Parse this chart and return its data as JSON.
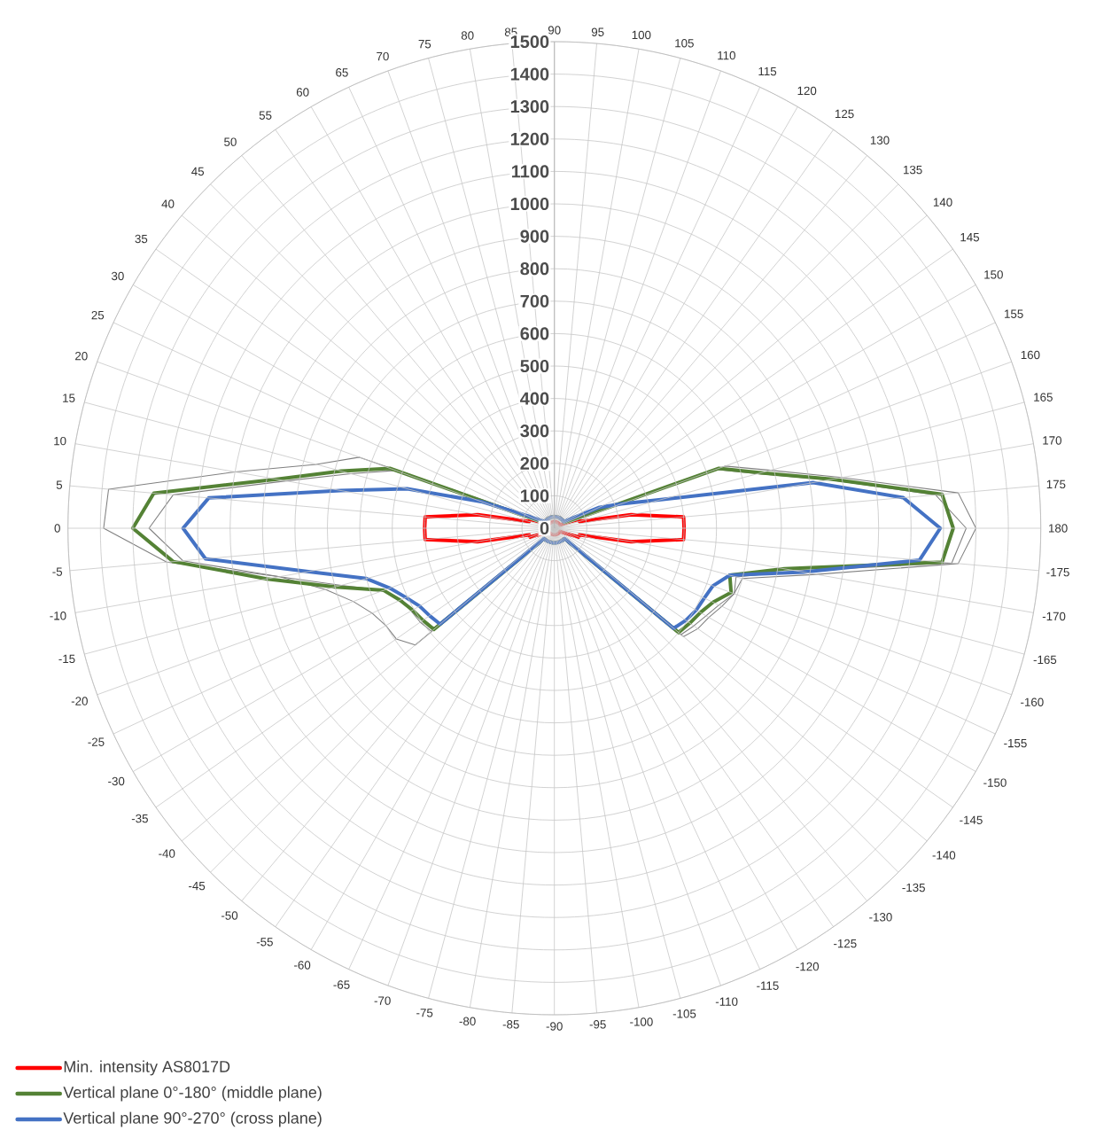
{
  "chart_data": {
    "type": "radar",
    "categories": [
      "90",
      "95",
      "100",
      "105",
      "110",
      "115",
      "120",
      "125",
      "130",
      "135",
      "140",
      "145",
      "150",
      "155",
      "160",
      "165",
      "170",
      "175",
      "180",
      "-175",
      "-170",
      "-165",
      "-160",
      "-155",
      "-150",
      "-145",
      "-140",
      "-135",
      "-130",
      "-125",
      "-120",
      "-115",
      "-110",
      "-105",
      "-100",
      "-95",
      "-90",
      "-85",
      "-80",
      "-75",
      "-70",
      "-65",
      "-60",
      "-55",
      "-50",
      "-45",
      "-40",
      "-35",
      "-30",
      "-25",
      "-20",
      "-15",
      "-10",
      "-5",
      "0",
      "5",
      "10",
      "15",
      "20",
      "25",
      "30",
      "35",
      "40",
      "45",
      "50",
      "55",
      "60",
      "65",
      "70",
      "75",
      "80",
      "85"
    ],
    "series": [
      {
        "name": "Min. intensity AS8017D",
        "color": "#ff0000",
        "values": [
          20,
          20,
          20,
          20,
          20,
          20,
          20,
          20,
          20,
          20,
          20,
          20,
          20,
          40,
          80,
          80,
          240,
          400,
          400,
          400,
          240,
          80,
          80,
          40,
          20,
          20,
          20,
          20,
          20,
          20,
          20,
          20,
          20,
          20,
          20,
          20,
          20,
          20,
          20,
          20,
          20,
          20,
          20,
          20,
          20,
          20,
          20,
          20,
          20,
          40,
          80,
          80,
          240,
          400,
          400,
          400,
          240,
          80,
          80,
          40,
          20,
          20,
          20,
          20,
          20,
          20,
          20,
          20,
          20,
          20,
          20,
          20
        ]
      },
      {
        "name": "Vertical plane 0°-180° (middle plane)",
        "color": "#548235",
        "values": [
          35,
          35,
          35,
          35,
          35,
          35,
          35,
          35,
          35,
          35,
          35,
          35,
          35,
          50,
          540,
          660,
          870,
          1200,
          1230,
          1200,
          720,
          560,
          580,
          540,
          520,
          510,
          500,
          50,
          45,
          45,
          45,
          45,
          45,
          45,
          45,
          45,
          45,
          45,
          45,
          45,
          45,
          45,
          45,
          45,
          45,
          50,
          485,
          495,
          505,
          525,
          560,
          700,
          900,
          1180,
          1300,
          1240,
          870,
          680,
          540,
          50,
          35,
          35,
          35,
          35,
          35,
          35,
          35,
          35,
          35,
          35,
          35,
          35
        ]
      },
      {
        "name": "Vertical plane 90°-270° (cross plane)",
        "color": "#4472c4",
        "values": [
          35,
          35,
          35,
          35,
          35,
          35,
          35,
          35,
          35,
          35,
          35,
          35,
          60,
          150,
          220,
          340,
          810,
          1080,
          1190,
          1130,
          780,
          560,
          520,
          510,
          505,
          495,
          480,
          45,
          45,
          45,
          45,
          45,
          45,
          45,
          45,
          45,
          45,
          45,
          45,
          45,
          45,
          45,
          45,
          45,
          45,
          45,
          460,
          470,
          480,
          505,
          540,
          600,
          770,
          1080,
          1145,
          1070,
          670,
          470,
          240,
          90,
          50,
          35,
          35,
          35,
          35,
          35,
          35,
          35,
          35,
          35,
          35,
          35
        ]
      },
      {
        "color": "#808080",
        "values": [
          40,
          40,
          40,
          40,
          40,
          40,
          40,
          40,
          40,
          40,
          40,
          40,
          40,
          40,
          560,
          690,
          900,
          1250,
          1300,
          1250,
          820,
          600,
          590,
          570,
          550,
          540,
          520,
          40,
          40,
          40,
          40,
          40,
          40,
          40,
          40,
          40,
          40,
          40,
          40,
          40,
          40,
          40,
          40,
          40,
          40,
          40,
          560,
          595,
          600,
          620,
          660,
          730,
          860,
          1200,
          1390,
          1380,
          1000,
          760,
          640,
          100,
          40,
          40,
          40,
          40,
          40,
          40,
          40,
          40,
          40,
          40,
          40,
          40
        ]
      },
      {
        "color": "#808080",
        "values": [
          40,
          40,
          40,
          40,
          40,
          40,
          40,
          40,
          40,
          40,
          40,
          40,
          40,
          50,
          530,
          650,
          860,
          1180,
          1270,
          1230,
          760,
          580,
          590,
          560,
          540,
          525,
          510,
          50,
          40,
          40,
          40,
          40,
          40,
          40,
          40,
          40,
          40,
          40,
          40,
          40,
          40,
          40,
          40,
          40,
          40,
          50,
          495,
          505,
          510,
          520,
          560,
          680,
          860,
          1150,
          1250,
          1180,
          840,
          650,
          520,
          50,
          40,
          40,
          40,
          40,
          40,
          40,
          40,
          40,
          40,
          40,
          40,
          40
        ]
      }
    ],
    "ylim": [
      0,
      1500
    ],
    "yticks": [
      0,
      100,
      200,
      300,
      400,
      500,
      600,
      700,
      800,
      900,
      1000,
      1100,
      1200,
      1300,
      1400,
      1500
    ],
    "grid": true,
    "legend": "bottom left"
  }
}
